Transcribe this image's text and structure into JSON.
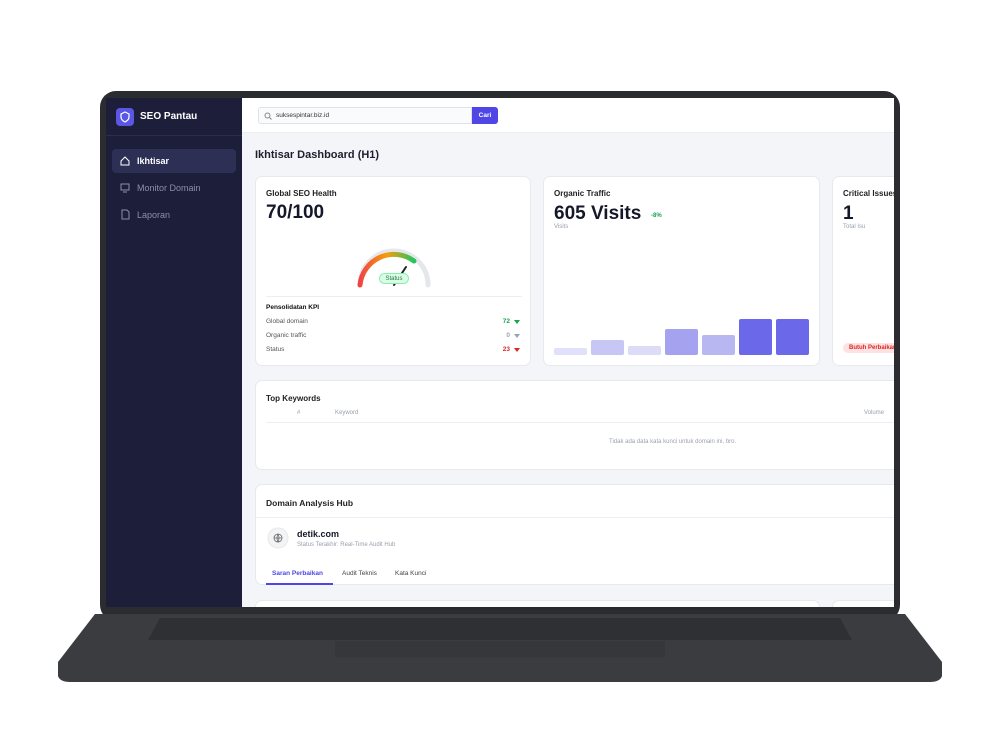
{
  "sidebar": {
    "brand": "SEO Pantau",
    "nav": [
      "Ikhtisar",
      "Monitor Domain",
      "Laporan"
    ]
  },
  "search": {
    "value": "suksespintar.biz.id",
    "button": "Cari"
  },
  "page_title": "Ikhtisar Dashboard (H1)",
  "health_card": {
    "title": "Global SEO Health",
    "score": "70/100",
    "gauge_label": "Status",
    "kpi_title": "Pensolidatan KPI",
    "kpi_rows": [
      {
        "label": "Global domain",
        "value": 72
      },
      {
        "label": "Organic traffic",
        "value": 0
      },
      {
        "label": "Status",
        "value": 23
      }
    ]
  },
  "traffic_card": {
    "title": "Organic Traffic",
    "value": "605 Visits",
    "change": "-8%",
    "subtitle": "Visits",
    "bars": [
      7,
      15,
      9,
      26,
      20,
      36,
      36
    ]
  },
  "issues_card": {
    "title": "Critical Issues",
    "value": "1",
    "subtitle": "Total Isu",
    "badge": "Butuh Perbaikan"
  },
  "keywords_card": {
    "title": "Top Keywords",
    "columns": [
      "#",
      "Keyword",
      "Volume"
    ],
    "empty_message": "Tidak ada data kata kunci untuk domain ini, bro."
  },
  "domain_hub": {
    "title": "Domain Analysis Hub",
    "domain": "detik.com",
    "status": "Status Terakhir: Real-Time Audit Hub",
    "tabs": [
      "Saran Perbaikan",
      "Audit Teknis",
      "Kata Kunci"
    ]
  }
}
